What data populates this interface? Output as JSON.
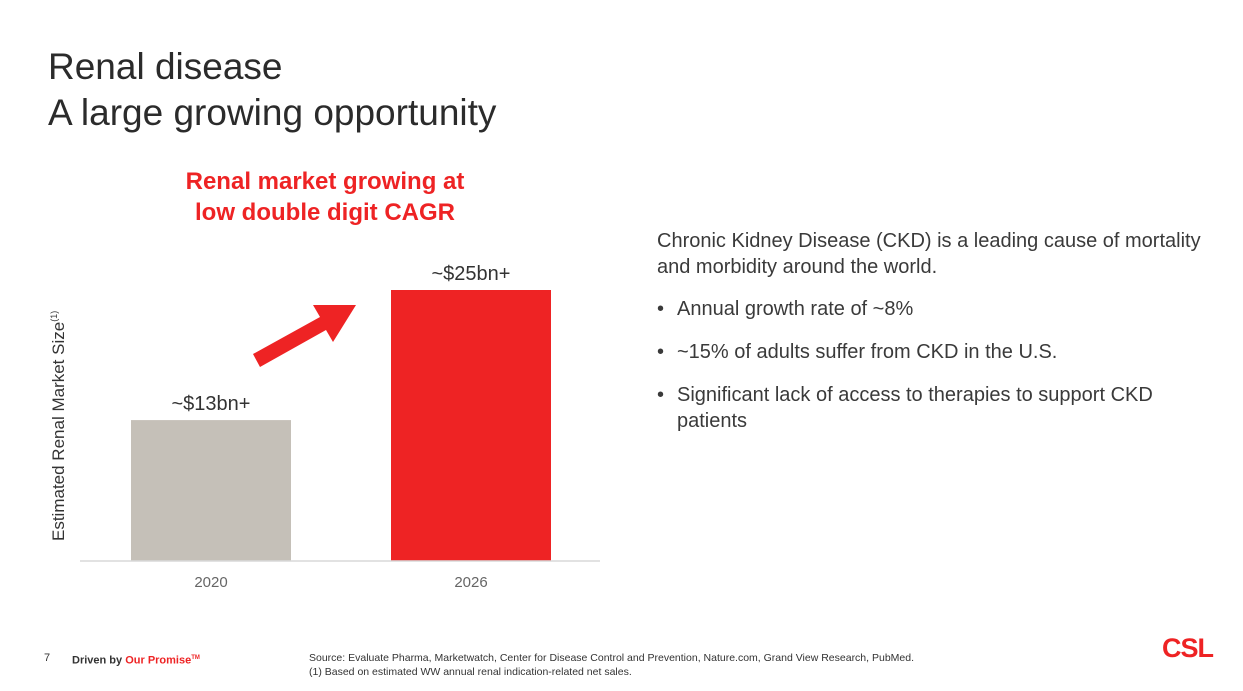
{
  "title": {
    "line1": "Renal disease",
    "line2": "A large growing opportunity"
  },
  "callout": {
    "line1": "Renal market growing at",
    "line2": "low double digit CAGR"
  },
  "chart_data": {
    "type": "bar",
    "categories": [
      "2020",
      "2026"
    ],
    "values": [
      13,
      25
    ],
    "data_labels": [
      "~$13bn+",
      "~$25bn+"
    ],
    "ylabel": "Estimated Renal Market Size",
    "ylabel_superscript": "(1)",
    "ylim": [
      0,
      25
    ],
    "bar_colors": [
      "#c5c0b8",
      "#ee2324"
    ],
    "annotation": "growth-arrow",
    "arrow_color": "#ee2324",
    "axis_color": "#d9d9d9"
  },
  "body": {
    "intro": "Chronic Kidney Disease (CKD) is a leading cause of mortality and morbidity around the world.",
    "bullet_char": "•",
    "bullets": [
      "Annual growth rate of ~8%",
      "~15% of adults suffer from CKD in the U.S.",
      "Significant lack of access to therapies to support CKD patients"
    ]
  },
  "footer": {
    "page_number": "7",
    "tagline_prefix": "Driven by",
    "tagline_brand": "Our Promise",
    "tagline_tm": "TM",
    "source": "Source: Evaluate Pharma, Marketwatch, Center for Disease Control and Prevention, Nature.com, Grand View Research, PubMed.",
    "note": "(1)    Based on estimated WW annual renal indication-related net sales."
  },
  "logo": {
    "text": "CSL"
  },
  "colors": {
    "accent": "#ee2324",
    "text": "#333333"
  }
}
